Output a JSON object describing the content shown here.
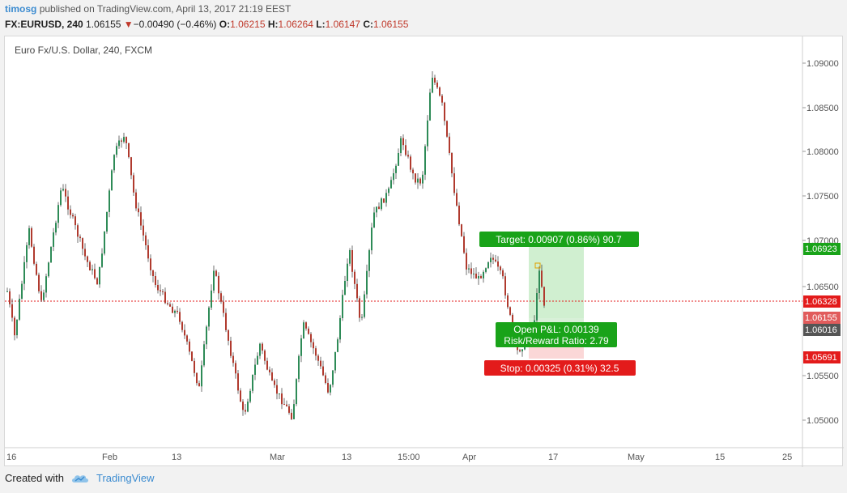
{
  "header": {
    "user": "timosg",
    "published": "published on TradingView.com, April 13, 2017 21:19 EEST",
    "symbol": "FX:EURUSD, 240",
    "last": "1.06155",
    "change": "−0.00490 (−0.46%)",
    "o_label": "O:",
    "o": "1.06215",
    "h_label": "H:",
    "h": "1.06264",
    "l_label": "L:",
    "l": "1.06147",
    "c_label": "C:",
    "c": "1.06155"
  },
  "chart": {
    "title": "Euro Fx/U.S. Dollar, 240, FXCM",
    "price_ticks": [
      "1.09000",
      "1.08500",
      "1.08000",
      "1.07500",
      "1.07000",
      "1.06500",
      "1.05500",
      "1.05000"
    ],
    "time_labels": [
      "16",
      "Feb",
      "13",
      "Mar",
      "13",
      "15:00",
      "Apr",
      "17",
      "May",
      "15",
      "25"
    ],
    "price_badges": [
      {
        "label": "1.06923",
        "color": "#19a319"
      },
      {
        "label": "1.06328",
        "color": "#e31b1b"
      },
      {
        "label": "1.06155",
        "color": "#e15c5c"
      },
      {
        "label": "1.06016",
        "color": "#555555"
      },
      {
        "label": "1.05691",
        "color": "#e31b1b"
      }
    ],
    "target_label": "Target: 0.00907 (0.86%) 90.7",
    "pnl_label": "Open P&L: 0.00139",
    "rr_label": "Risk/Reward Ratio: 2.79",
    "stop_label": "Stop: 0.00325 (0.31%) 32.5",
    "colors": {
      "up": "#2e8b57",
      "down": "#b03a2e",
      "target": "#19a319",
      "stop": "#e31b1b"
    }
  },
  "footer": {
    "created_with": "Created with",
    "brand": "TradingView",
    "logo_icon": "tradingview-cloud-icon"
  }
}
